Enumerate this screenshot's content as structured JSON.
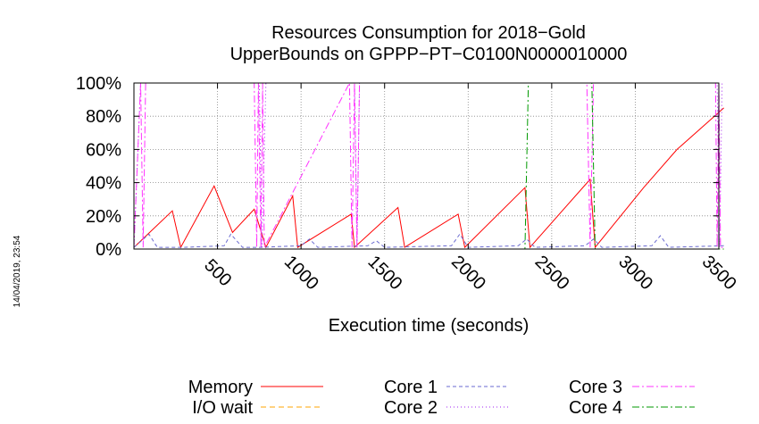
{
  "chart_data": {
    "type": "line",
    "title": [
      "Resources Consumption for 2018−Gold",
      "UpperBounds on GPPP−PT−C0100N0000010000"
    ],
    "xlabel": "Execution time (seconds)",
    "ylabel": "",
    "xlim": [
      0,
      3500
    ],
    "ylim": [
      0,
      100
    ],
    "x_ticks": [
      500,
      1000,
      1500,
      2000,
      2500,
      3000,
      3500
    ],
    "x_tick_labels": [
      "500",
      "1000",
      "1500",
      "2000",
      "2500",
      "3000",
      "3500"
    ],
    "y_ticks": [
      0,
      20,
      40,
      60,
      80,
      100
    ],
    "y_tick_labels": [
      "0%",
      "20%",
      "40%",
      "60%",
      "80%",
      "100%"
    ],
    "grid": true,
    "legend_position": "bottom",
    "timestamp": "14/04/2019, 23:54",
    "series": [
      {
        "name": "Memory",
        "color": "#ff0000",
        "dash": "",
        "x": [
          0,
          230,
          280,
          480,
          590,
          720,
          790,
          950,
          980,
          1300,
          1320,
          1580,
          1620,
          1940,
          1980,
          2340,
          2370,
          2730,
          2760,
          3050,
          3250,
          3530
        ],
        "y": [
          1,
          23,
          1,
          38,
          10,
          24,
          1,
          32,
          1,
          21,
          1,
          25,
          1,
          21,
          1,
          37,
          1,
          42,
          1,
          37,
          60,
          85
        ]
      },
      {
        "name": "I/O wait",
        "color": "#ffa500",
        "dash": "6,4",
        "x": [
          0,
          3530
        ],
        "y": [
          0,
          0
        ]
      },
      {
        "name": "Core 1",
        "color": "#6a6ad0",
        "dash": "4,3",
        "x": [
          0,
          90,
          140,
          300,
          540,
          580,
          650,
          750,
          1000,
          1050,
          1100,
          1400,
          1450,
          1500,
          1900,
          1950,
          2000,
          2300,
          2350,
          2400,
          2700,
          2750,
          2800,
          3100,
          3150,
          3200,
          3530
        ],
        "y": [
          1,
          9,
          1,
          1,
          2,
          9,
          1,
          1,
          2,
          6,
          1,
          2,
          5,
          1,
          2,
          9,
          1,
          2,
          6,
          1,
          2,
          6,
          1,
          2,
          8,
          1,
          2
        ]
      },
      {
        "name": "Core 2",
        "color": "#a020f0",
        "dash": "1,3",
        "x": [
          0,
          40,
          60,
          750,
          765,
          790,
          820,
          1320,
          1335,
          1350,
          1370,
          3490,
          3505,
          3520,
          3530
        ],
        "y": [
          1,
          100,
          100,
          100,
          1,
          100,
          100,
          100,
          1,
          100,
          100,
          100,
          1,
          100,
          100
        ]
      },
      {
        "name": "Core 3",
        "color": "#ff33ff",
        "dash": "8,3,2,3",
        "x": [
          0,
          40,
          55,
          70,
          720,
          735,
          745,
          760,
          770,
          780,
          1290,
          1305,
          1320,
          1335,
          1350,
          2710,
          2730,
          2750,
          3480,
          3490,
          3500,
          3510,
          3530
        ],
        "y": [
          1,
          100,
          1,
          100,
          100,
          1,
          100,
          1,
          100,
          1,
          100,
          1,
          100,
          1,
          100,
          100,
          1,
          100,
          100,
          1,
          100,
          1,
          1
        ]
      },
      {
        "name": "Core 4",
        "color": "#009900",
        "dash": "8,3,2,3",
        "x": [
          0,
          2340,
          2360,
          2380,
          2720,
          2740,
          2760,
          3530
        ],
        "y": [
          0,
          0,
          100,
          100,
          100,
          100,
          0,
          0
        ]
      }
    ]
  }
}
